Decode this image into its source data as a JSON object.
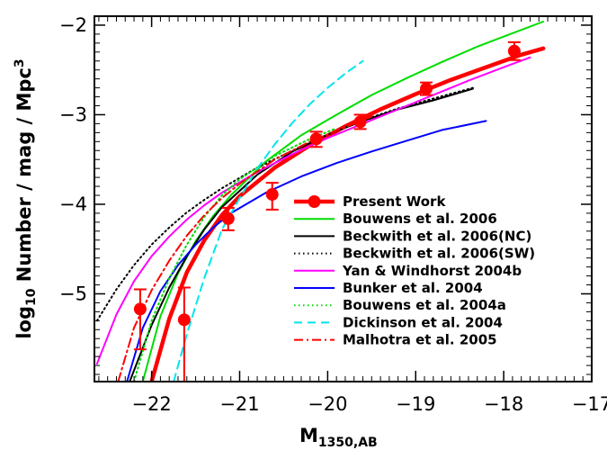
{
  "chart_data": {
    "type": "line",
    "xlabel": "M",
    "xlabel_sub": "1350,AB",
    "ylabel_prefix": "log",
    "ylabel_sub": "10",
    "ylabel_main": " Number / mag / Mpc",
    "ylabel_sup": "3",
    "xlim": [
      -22.65,
      -17.0
    ],
    "ylim": [
      -5.98,
      -1.9
    ],
    "x_ticks": [
      -22,
      -21,
      -20,
      -19,
      -18,
      -17
    ],
    "x_tick_labels": [
      "−22",
      "−21",
      "−20",
      "−19",
      "−18",
      "−17"
    ],
    "y_ticks": [
      -5,
      -4,
      -3,
      -2
    ],
    "y_tick_labels": [
      "−5",
      "−4",
      "−3",
      "−2"
    ],
    "legend_position": "lower-right",
    "grid": false,
    "points": {
      "name": "Present Work",
      "color": "#ff0000",
      "values": [
        {
          "x": -22.13,
          "y": -5.17,
          "err_lo": 0.45,
          "err_hi": 0.22
        },
        {
          "x": -21.63,
          "y": -5.29,
          "err_lo": 0.75,
          "err_hi": 0.36
        },
        {
          "x": -21.13,
          "y": -4.16,
          "err_lo": 0.13,
          "err_hi": 0.12
        },
        {
          "x": -20.63,
          "y": -3.89,
          "err_lo": 0.17,
          "err_hi": 0.13
        },
        {
          "x": -20.13,
          "y": -3.27,
          "err_lo": 0.09,
          "err_hi": 0.08
        },
        {
          "x": -19.63,
          "y": -3.08,
          "err_lo": 0.08,
          "err_hi": 0.08
        },
        {
          "x": -18.88,
          "y": -2.71,
          "err_lo": 0.07,
          "err_hi": 0.07
        },
        {
          "x": -17.88,
          "y": -2.29,
          "err_lo": 0.1,
          "err_hi": 0.1
        }
      ]
    },
    "series": [
      {
        "name": "Present Work",
        "color": "#ff0000",
        "style": "solid",
        "width": 4.5,
        "legend_marker": true,
        "points": [
          [
            -22.0,
            -5.98
          ],
          [
            -21.8,
            -5.28
          ],
          [
            -21.6,
            -4.76
          ],
          [
            -21.4,
            -4.4
          ],
          [
            -21.2,
            -4.12
          ],
          [
            -21.0,
            -3.91
          ],
          [
            -20.6,
            -3.59
          ],
          [
            -20.2,
            -3.34
          ],
          [
            -19.8,
            -3.13
          ],
          [
            -19.4,
            -2.94
          ],
          [
            -19.0,
            -2.77
          ],
          [
            -18.6,
            -2.61
          ],
          [
            -18.2,
            -2.47
          ],
          [
            -17.8,
            -2.33
          ],
          [
            -17.55,
            -2.26
          ]
        ]
      },
      {
        "name": "Bouwens et al. 2006",
        "color": "#00dd00",
        "style": "solid",
        "width": 2,
        "points": [
          [
            -22.1,
            -5.98
          ],
          [
            -21.9,
            -5.25
          ],
          [
            -21.7,
            -4.77
          ],
          [
            -21.5,
            -4.41
          ],
          [
            -21.3,
            -4.13
          ],
          [
            -21.1,
            -3.9
          ],
          [
            -20.7,
            -3.52
          ],
          [
            -20.3,
            -3.23
          ],
          [
            -19.9,
            -3.0
          ],
          [
            -19.5,
            -2.78
          ],
          [
            -19.1,
            -2.59
          ],
          [
            -18.7,
            -2.41
          ],
          [
            -18.3,
            -2.24
          ],
          [
            -17.9,
            -2.09
          ],
          [
            -17.55,
            -1.96
          ]
        ]
      },
      {
        "name": "Beckwith et al. 2006(NC)",
        "color": "#000000",
        "style": "solid",
        "width": 2,
        "points": [
          [
            -22.25,
            -5.98
          ],
          [
            -22.0,
            -5.35
          ],
          [
            -21.8,
            -4.93
          ],
          [
            -21.6,
            -4.58
          ],
          [
            -21.4,
            -4.28
          ],
          [
            -21.2,
            -4.03
          ],
          [
            -20.8,
            -3.67
          ],
          [
            -20.4,
            -3.41
          ],
          [
            -20.0,
            -3.22
          ],
          [
            -19.6,
            -3.07
          ],
          [
            -19.2,
            -2.94
          ],
          [
            -18.8,
            -2.84
          ],
          [
            -18.35,
            -2.71
          ]
        ]
      },
      {
        "name": "Beckwith et al. 2006(SW)",
        "color": "#000000",
        "style": "dotted",
        "width": 2,
        "points": [
          [
            -22.62,
            -5.3
          ],
          [
            -22.4,
            -4.95
          ],
          [
            -22.2,
            -4.68
          ],
          [
            -22.0,
            -4.45
          ],
          [
            -21.8,
            -4.26
          ],
          [
            -21.6,
            -4.09
          ],
          [
            -21.4,
            -3.95
          ],
          [
            -21.2,
            -3.82
          ],
          [
            -20.8,
            -3.59
          ],
          [
            -20.4,
            -3.4
          ],
          [
            -20.0,
            -3.22
          ],
          [
            -19.6,
            -3.06
          ],
          [
            -19.2,
            -2.93
          ],
          [
            -18.8,
            -2.82
          ],
          [
            -18.35,
            -2.7
          ]
        ]
      },
      {
        "name": "Yan & Windhorst 2004b",
        "color": "#ff00ff",
        "style": "solid",
        "width": 2,
        "points": [
          [
            -22.62,
            -5.78
          ],
          [
            -22.4,
            -5.23
          ],
          [
            -22.2,
            -4.86
          ],
          [
            -22.0,
            -4.58
          ],
          [
            -21.8,
            -4.36
          ],
          [
            -21.6,
            -4.17
          ],
          [
            -21.4,
            -4.01
          ],
          [
            -21.2,
            -3.87
          ],
          [
            -20.8,
            -3.64
          ],
          [
            -20.4,
            -3.44
          ],
          [
            -20.0,
            -3.26
          ],
          [
            -19.6,
            -3.1
          ],
          [
            -19.2,
            -2.94
          ],
          [
            -18.8,
            -2.78
          ],
          [
            -18.4,
            -2.62
          ],
          [
            -18.0,
            -2.47
          ],
          [
            -17.7,
            -2.36
          ]
        ]
      },
      {
        "name": "Bunker et al. 2004",
        "color": "#0000ff",
        "style": "solid",
        "width": 2,
        "points": [
          [
            -22.28,
            -5.98
          ],
          [
            -22.1,
            -5.38
          ],
          [
            -21.9,
            -4.97
          ],
          [
            -21.7,
            -4.68
          ],
          [
            -21.5,
            -4.45
          ],
          [
            -21.3,
            -4.26
          ],
          [
            -21.1,
            -4.1
          ],
          [
            -20.7,
            -3.87
          ],
          [
            -20.3,
            -3.69
          ],
          [
            -19.9,
            -3.54
          ],
          [
            -19.5,
            -3.41
          ],
          [
            -19.1,
            -3.29
          ],
          [
            -18.7,
            -3.17
          ],
          [
            -18.2,
            -3.07
          ]
        ]
      },
      {
        "name": "Bouwens et al. 2004a",
        "color": "#00dd00",
        "style": "dotted",
        "width": 2,
        "points": [
          [
            -22.2,
            -5.98
          ],
          [
            -22.0,
            -5.3
          ],
          [
            -21.8,
            -4.83
          ],
          [
            -21.6,
            -4.45
          ],
          [
            -21.4,
            -4.14
          ],
          [
            -21.2,
            -3.9
          ],
          [
            -21.0,
            -3.72
          ],
          [
            -20.6,
            -3.46
          ],
          [
            -20.2,
            -3.27
          ],
          [
            -19.9,
            -3.15
          ]
        ]
      },
      {
        "name": "Dickinson et al. 2004",
        "color": "#00e5ee",
        "style": "dashed",
        "width": 2,
        "points": [
          [
            -21.75,
            -5.98
          ],
          [
            -21.6,
            -5.45
          ],
          [
            -21.4,
            -4.82
          ],
          [
            -21.2,
            -4.28
          ],
          [
            -21.0,
            -3.93
          ],
          [
            -20.8,
            -3.6
          ],
          [
            -20.6,
            -3.33
          ],
          [
            -20.4,
            -3.09
          ],
          [
            -20.2,
            -2.88
          ],
          [
            -20.0,
            -2.7
          ],
          [
            -19.8,
            -2.54
          ],
          [
            -19.6,
            -2.4
          ]
        ]
      },
      {
        "name": "Malhotra et al. 2005",
        "color": "#ff0000",
        "style": "dashdot",
        "width": 2,
        "points": [
          [
            -22.38,
            -5.98
          ],
          [
            -22.2,
            -5.38
          ],
          [
            -22.0,
            -4.96
          ],
          [
            -21.8,
            -4.63
          ],
          [
            -21.6,
            -4.35
          ],
          [
            -21.4,
            -4.12
          ],
          [
            -21.2,
            -3.93
          ],
          [
            -21.0,
            -3.77
          ],
          [
            -20.6,
            -3.5
          ],
          [
            -20.2,
            -3.3
          ],
          [
            -19.8,
            -3.14
          ],
          [
            -19.5,
            -3.02
          ]
        ]
      }
    ]
  }
}
